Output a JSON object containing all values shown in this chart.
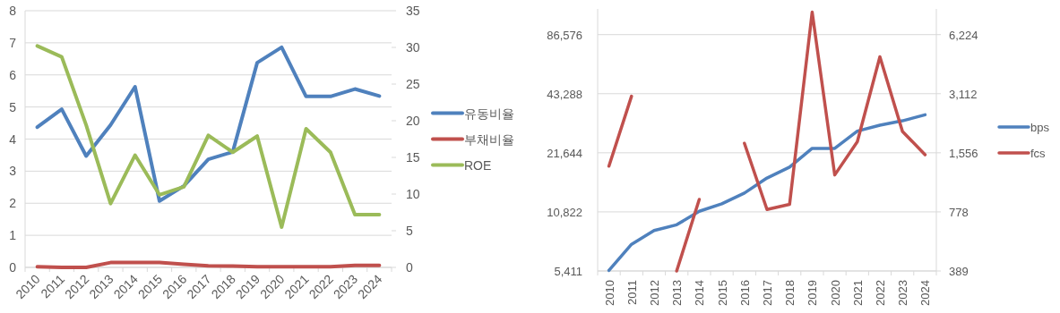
{
  "chart_data": [
    {
      "type": "line",
      "categories": [
        "2010",
        "2011",
        "2012",
        "2013",
        "2014",
        "2015",
        "2016",
        "2017",
        "2018",
        "2019",
        "2020",
        "2021",
        "2022",
        "2023",
        "2024"
      ],
      "series": [
        {
          "name": "유동비율",
          "color": "#4f81bd",
          "values": [
            4.37,
            4.93,
            3.47,
            4.44,
            5.63,
            2.07,
            2.54,
            3.37,
            3.6,
            6.38,
            6.86,
            5.33,
            5.33,
            5.56,
            5.34
          ]
        },
        {
          "name": "부채비율",
          "color": "#c0504d",
          "values": [
            0.02,
            0,
            0,
            0.15,
            0.15,
            0.15,
            0.1,
            0.05,
            0.04,
            0.02,
            0.02,
            0.02,
            0.02,
            0.06,
            0.06
          ]
        },
        {
          "name": "ROE",
          "color": "#9bbb59",
          "axis": "y2",
          "values": [
            30.2,
            28.7,
            19.4,
            8.7,
            15.3,
            9.9,
            11.0,
            18.0,
            15.7,
            17.9,
            5.5,
            18.9,
            15.7,
            7.2,
            7.2
          ]
        }
      ],
      "ylim": [
        0,
        8
      ],
      "yticks": [
        0,
        1,
        2,
        3,
        4,
        5,
        6,
        7,
        8
      ],
      "y2lim": [
        0,
        35
      ],
      "y2ticks": [
        0,
        5,
        10,
        15,
        20,
        25,
        30,
        35
      ],
      "grid": "y",
      "legend": "right",
      "line_style": "solid"
    },
    {
      "type": "line",
      "categories": [
        "2010",
        "2011",
        "2012",
        "2013",
        "2014",
        "2015",
        "2016",
        "2017",
        "2018",
        "2019",
        "2020",
        "2021",
        "2022",
        "2023",
        "2024"
      ],
      "series": [
        {
          "name": "bps",
          "color": "#4f81bd",
          "values": [
            5450,
            7400,
            8700,
            9300,
            10900,
            11900,
            13500,
            16100,
            18300,
            22800,
            22800,
            27900,
            29900,
            31500,
            33800
          ]
        }
      ],
      "log": true,
      "ylim": [
        5411,
        117000
      ],
      "yticks": [
        {
          "value": 5411,
          "label": "5,411"
        },
        {
          "value": 10822,
          "label": "10,822"
        },
        {
          "value": 21644,
          "label": "21,644"
        },
        {
          "value": 43288,
          "label": "43,288"
        },
        {
          "value": 86576,
          "label": "86,576"
        }
      ],
      "grid": "y",
      "legend": "right",
      "line_style": "solid"
    },
    {
      "type": "line",
      "series": [
        {
          "name": "fcs",
          "color": "#c0504d",
          "values": [
            1330,
            3020,
            null,
            389,
            900,
            null,
            1740,
            800,
            850,
            8100,
            1200,
            1770,
            4800,
            2000,
            1520
          ]
        }
      ],
      "log": true,
      "tick_labels": "y",
      "ylim": [
        389,
        8411
      ],
      "yticks": [
        {
          "value": 389,
          "label": "389"
        },
        {
          "value": 778,
          "label": "778"
        },
        {
          "value": 1556,
          "label": "1,556"
        },
        {
          "value": 3112,
          "label": "3,112"
        },
        {
          "value": 6224,
          "label": "6,224"
        }
      ],
      "legend": "right",
      "line_style": "solid"
    }
  ]
}
